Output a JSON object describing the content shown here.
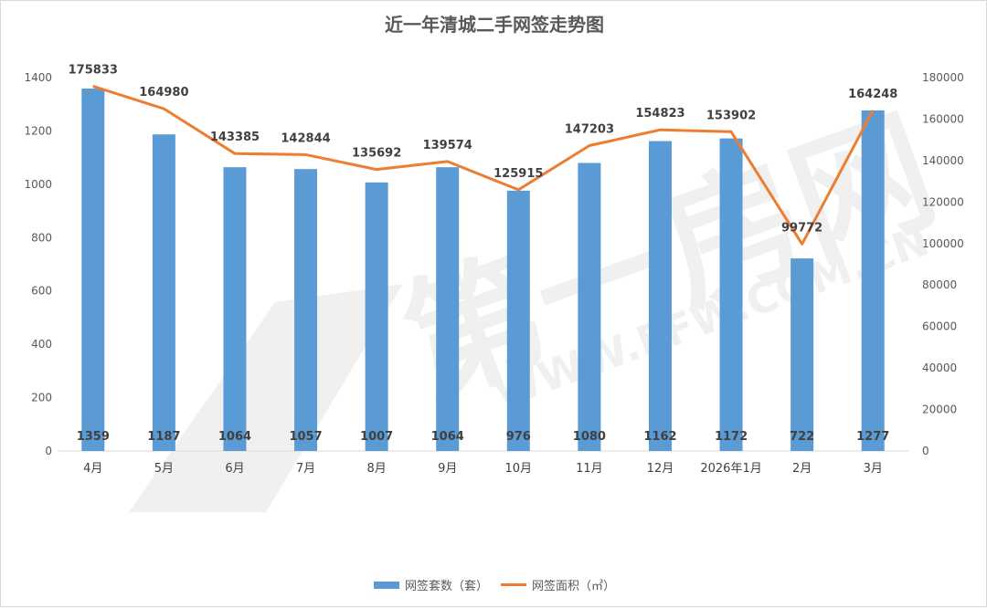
{
  "chart_data": {
    "type": "bar",
    "title": "近一年清城二手网签走势图",
    "categories": [
      "4月",
      "5月",
      "6月",
      "7月",
      "8月",
      "9月",
      "10月",
      "11月",
      "12月",
      "2026年1月",
      "2月",
      "3月"
    ],
    "series": [
      {
        "name": "网签套数（套）",
        "type": "bar",
        "axis": "left",
        "color": "#5b9bd5",
        "values": [
          1359,
          1187,
          1064,
          1057,
          1007,
          1064,
          976,
          1080,
          1162,
          1172,
          722,
          1277
        ]
      },
      {
        "name": "网签面积（㎡）",
        "type": "line",
        "axis": "right",
        "color": "#ed7d31",
        "values": [
          175833,
          164980,
          143385,
          142844,
          135692,
          139574,
          125915,
          147203,
          154823,
          153902,
          99772,
          164248
        ]
      }
    ],
    "y_left": {
      "min": 0,
      "max": 1400,
      "step": 200
    },
    "y_right": {
      "min": 0,
      "max": 180000,
      "step": 20000
    },
    "grid": false,
    "legend_position": "bottom"
  }
}
